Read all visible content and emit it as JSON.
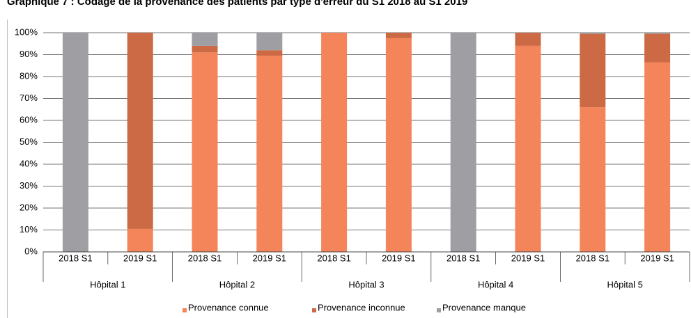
{
  "chart_data": {
    "type": "stacked_bar",
    "title": "Graphique 7 : Codage de la provenance des patients par type d'erreur du S1 2018 au S1 2019",
    "categories": [
      "2018 S1",
      "2019 S1",
      "2018 S1",
      "2019 S1",
      "2018 S1",
      "2019 S1",
      "2018 S1",
      "2019 S1",
      "2018 S1",
      "2019 S1"
    ],
    "groups": [
      "Hôpital 1",
      "Hôpital 2",
      "Hôpital 3",
      "Hôpital 4",
      "Hôpital 5"
    ],
    "series": [
      {
        "name": "Provenance connue",
        "color": "#f4845a",
        "values": [
          0,
          10.5,
          91,
          89.5,
          100,
          97.5,
          0,
          94,
          66,
          86.5
        ]
      },
      {
        "name": "Provenance inconnue",
        "color": "#cc6a45",
        "values": [
          0,
          89.5,
          3,
          2.5,
          0,
          2.5,
          0,
          6,
          33.5,
          13
        ]
      },
      {
        "name": "Provenance manque",
        "color": "#9e9ea3",
        "values": [
          100,
          0,
          6,
          8,
          0,
          0,
          100,
          0,
          0.5,
          0.5
        ]
      }
    ],
    "ylim": [
      0,
      100
    ],
    "yticks": [
      {
        "value": 0,
        "label": "0%"
      },
      {
        "value": 10,
        "label": "10%"
      },
      {
        "value": 20,
        "label": "20%"
      },
      {
        "value": 30,
        "label": "30%"
      },
      {
        "value": 40,
        "label": "40%"
      },
      {
        "value": 50,
        "label": "50%"
      },
      {
        "value": 60,
        "label": "60%"
      },
      {
        "value": 70,
        "label": "70%"
      },
      {
        "value": 80,
        "label": "80%"
      },
      {
        "value": 90,
        "label": "90%"
      },
      {
        "value": 100,
        "label": "100%"
      }
    ],
    "grid": true,
    "legend": "bottom"
  }
}
